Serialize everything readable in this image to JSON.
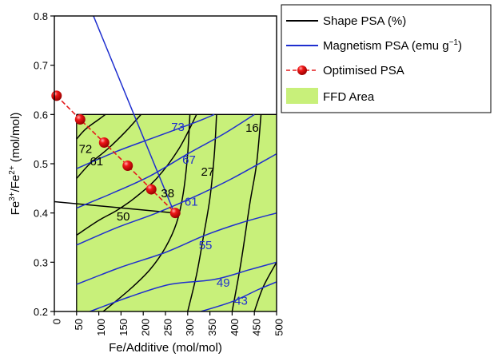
{
  "chart_data": {
    "type": "line",
    "xlabel": "Fe/Additive (mol/mol)",
    "ylabel": {
      "base": "Fe",
      "sup1": "3+",
      "mid": "/Fe",
      "sup2": "2+",
      "unit": " (mol/mol)"
    },
    "xlim": [
      0,
      500
    ],
    "ylim": [
      0.2,
      0.8
    ],
    "xticks": [
      0,
      50,
      100,
      150,
      200,
      250,
      300,
      350,
      400,
      450,
      500
    ],
    "yticks": [
      0.2,
      0.3,
      0.4,
      0.5,
      0.6,
      0.7,
      0.8
    ],
    "ytick_labels": [
      "0.2",
      "0.3",
      "0.4",
      "0.5",
      "0.6",
      "0.7",
      "0.8"
    ],
    "ffd_area": {
      "x": [
        50,
        500
      ],
      "y": [
        0.2,
        0.6
      ]
    },
    "series": [
      {
        "name": "Shape PSA (%)",
        "kind": "contour",
        "color": "#000000",
        "contours": [
          {
            "label": "72",
            "points": [
              [
                50,
                0.55
              ],
              [
                70,
                0.57
              ],
              [
                100,
                0.59
              ],
              [
                115,
                0.6
              ]
            ],
            "label_at": [
              70,
              0.53
            ]
          },
          {
            "label": "61",
            "points": [
              [
                50,
                0.47
              ],
              [
                80,
                0.5
              ],
              [
                120,
                0.53
              ],
              [
                160,
                0.565
              ],
              [
                195,
                0.6
              ]
            ],
            "label_at": [
              95,
              0.505
            ]
          },
          {
            "label": "50",
            "points": [
              [
                50,
                0.355
              ],
              [
                100,
                0.385
              ],
              [
                140,
                0.405
              ],
              [
                180,
                0.43
              ],
              [
                230,
                0.47
              ],
              [
                280,
                0.53
              ],
              [
                320,
                0.6
              ]
            ],
            "label_at": [
              155,
              0.393
            ]
          },
          {
            "label": "38",
            "points": [
              [
                110,
                0.2
              ],
              [
                170,
                0.245
              ],
              [
                215,
                0.285
              ],
              [
                250,
                0.33
              ],
              [
                275,
                0.38
              ],
              [
                290,
                0.44
              ],
              [
                300,
                0.52
              ],
              [
                305,
                0.6
              ]
            ],
            "label_at": [
              255,
              0.44
            ]
          },
          {
            "label": "27",
            "points": [
              [
                300,
                0.2
              ],
              [
                320,
                0.275
              ],
              [
                335,
                0.35
              ],
              [
                350,
                0.43
              ],
              [
                360,
                0.52
              ],
              [
                365,
                0.6
              ]
            ],
            "label_at": [
              345,
              0.484
            ]
          },
          {
            "label": "16",
            "points": [
              [
                400,
                0.2
              ],
              [
                420,
                0.3
              ],
              [
                440,
                0.42
              ],
              [
                455,
                0.5
              ],
              [
                465,
                0.6
              ]
            ],
            "label_at": [
              445,
              0.573
            ]
          },
          {
            "label": "",
            "points": [
              [
                450,
                0.2
              ],
              [
                470,
                0.25
              ],
              [
                500,
                0.3
              ]
            ],
            "label_at": null
          },
          {
            "label": "",
            "points": [
              [
                0,
                0.423
              ],
              [
                270,
                0.4
              ]
            ],
            "label_at": null
          }
        ]
      },
      {
        "name": "Magnetism PSA (emu g⁻¹)",
        "kind": "contour",
        "color": "#1f2fcf",
        "contours": [
          {
            "label": "73",
            "points": [
              [
                50,
                0.49
              ],
              [
                140,
                0.525
              ],
              [
                230,
                0.555
              ],
              [
                320,
                0.585
              ],
              [
                360,
                0.6
              ]
            ],
            "label_at": [
              278,
              0.575
            ]
          },
          {
            "label": "67",
            "points": [
              [
                50,
                0.41
              ],
              [
                130,
                0.44
              ],
              [
                215,
                0.475
              ],
              [
                300,
                0.52
              ],
              [
                380,
                0.56
              ],
              [
                450,
                0.6
              ]
            ],
            "label_at": [
              303,
              0.508
            ]
          },
          {
            "label": "61",
            "points": [
              [
                50,
                0.335
              ],
              [
                140,
                0.37
              ],
              [
                230,
                0.4
              ],
              [
                320,
                0.435
              ],
              [
                400,
                0.47
              ],
              [
                500,
                0.52
              ]
            ],
            "label_at": [
              308,
              0.423
            ]
          },
          {
            "label": "55",
            "points": [
              [
                50,
                0.255
              ],
              [
                150,
                0.29
              ],
              [
                250,
                0.32
              ],
              [
                340,
                0.355
              ],
              [
                420,
                0.38
              ],
              [
                500,
                0.4
              ]
            ],
            "label_at": [
              340,
              0.335
            ]
          },
          {
            "label": "49",
            "points": [
              [
                80,
                0.2
              ],
              [
                170,
                0.23
              ],
              [
                260,
                0.255
              ],
              [
                360,
                0.265
              ],
              [
                440,
                0.285
              ],
              [
                500,
                0.3
              ]
            ],
            "label_at": [
              380,
              0.258
            ]
          },
          {
            "label": "43",
            "points": [
              [
                330,
                0.2
              ],
              [
                400,
                0.22
              ],
              [
                460,
                0.245
              ],
              [
                500,
                0.26
              ]
            ],
            "label_at": [
              420,
              0.222
            ]
          },
          {
            "label": "",
            "points": [
              [
                88,
                0.8
              ],
              [
                270,
                0.4
              ]
            ],
            "label_at": null
          }
        ]
      },
      {
        "name": "Optimised PSA",
        "kind": "line-markers",
        "color": "#e41a1c",
        "points": [
          [
            5,
            0.638
          ],
          [
            58,
            0.59
          ],
          [
            112,
            0.543
          ],
          [
            165,
            0.496
          ],
          [
            218,
            0.448
          ],
          [
            272,
            0.4
          ]
        ]
      },
      {
        "name": "FFD Area",
        "kind": "area",
        "color": "#c8f07a"
      }
    ],
    "legend": {
      "placement": "right",
      "entries": [
        {
          "text": "Shape PSA (%)",
          "style": "line",
          "color": "#000000"
        },
        {
          "text": "Magnetism PSA (emu g",
          "sup": "−1",
          "tail": ")",
          "style": "line",
          "color": "#1f2fcf"
        },
        {
          "text": "Optimised PSA",
          "style": "marker",
          "color": "#e41a1c"
        },
        {
          "text": "FFD Area",
          "style": "fill",
          "color": "#c8f07a"
        }
      ]
    },
    "grid": false
  }
}
